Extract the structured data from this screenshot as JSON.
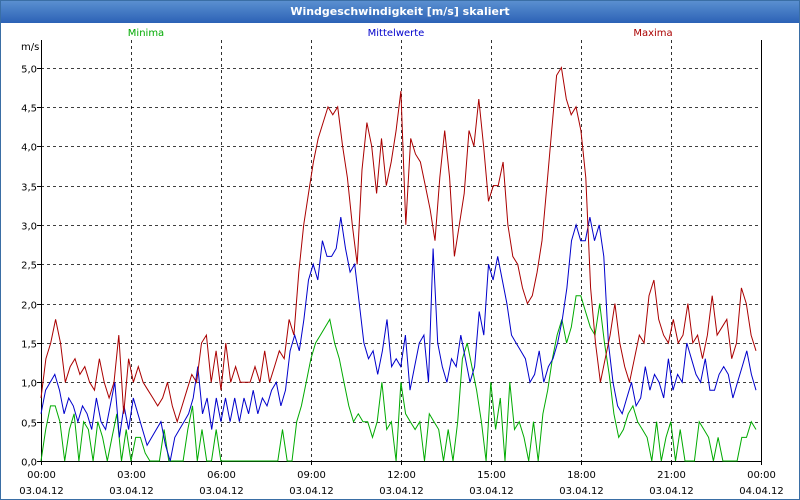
{
  "window": {
    "title": "Windgeschwindigkeit [m/s] skaliert"
  },
  "chart_data": {
    "type": "line",
    "title": "Windgeschwindigkeit [m/s] skaliert",
    "ylabel": "m/s",
    "xlabel": "",
    "ylim": [
      0,
      5.35
    ],
    "xlim": [
      0,
      24
    ],
    "grid": true,
    "legend": "top",
    "yticks": [
      {
        "value": 0,
        "label": "0,0"
      },
      {
        "value": 0.5,
        "label": "0,5"
      },
      {
        "value": 1,
        "label": "1,0"
      },
      {
        "value": 1.5,
        "label": "1,5"
      },
      {
        "value": 2,
        "label": "2,0"
      },
      {
        "value": 2.5,
        "label": "2,5"
      },
      {
        "value": 3,
        "label": "3,0"
      },
      {
        "value": 3.5,
        "label": "3,5"
      },
      {
        "value": 4,
        "label": "4,0"
      },
      {
        "value": 4.5,
        "label": "4,5"
      },
      {
        "value": 5,
        "label": "5,0"
      }
    ],
    "xticks": [
      {
        "value": 0,
        "time": "00:00",
        "date": "03.04.12"
      },
      {
        "value": 3,
        "time": "03:00",
        "date": "03.04.12"
      },
      {
        "value": 6,
        "time": "06:00",
        "date": "03.04.12"
      },
      {
        "value": 9,
        "time": "09:00",
        "date": "03.04.12"
      },
      {
        "value": 12,
        "time": "12:00",
        "date": "03.04.12"
      },
      {
        "value": 15,
        "time": "15:00",
        "date": "03.04.12"
      },
      {
        "value": 18,
        "time": "18:00",
        "date": "03.04.12"
      },
      {
        "value": 21,
        "time": "21:00",
        "date": "03.04.12"
      },
      {
        "value": 24,
        "time": "00:00",
        "date": "04.04.12"
      }
    ],
    "series": [
      {
        "name": "Minima",
        "color": "#00aa00",
        "values": [
          0.0,
          0.4,
          0.7,
          0.7,
          0.5,
          0.0,
          0.4,
          0.6,
          0.0,
          0.5,
          0.4,
          0.0,
          0.5,
          0.3,
          0.0,
          0.3,
          0.6,
          0.0,
          0.4,
          0.0,
          0.3,
          0.3,
          0.1,
          0.0,
          0.0,
          0.0,
          0.4,
          0.0,
          0.0,
          0.0,
          0.0,
          0.4,
          0.7,
          0.0,
          0.4,
          0.0,
          0.0,
          0.4,
          0.0,
          0.0,
          0.0,
          0.0,
          0.0,
          0.0,
          0.0,
          0.0,
          0.0,
          0.0,
          0.0,
          0.0,
          0.0,
          0.4,
          0.0,
          0.0,
          0.5,
          0.7,
          1.0,
          1.3,
          1.5,
          1.6,
          1.7,
          1.8,
          1.5,
          1.3,
          1.0,
          0.7,
          0.5,
          0.6,
          0.5,
          0.5,
          0.3,
          0.5,
          1.0,
          0.4,
          0.5,
          0.0,
          1.0,
          0.6,
          0.5,
          0.4,
          0.5,
          0.0,
          0.6,
          0.5,
          0.4,
          0.0,
          0.4,
          0.0,
          0.5,
          1.3,
          1.5,
          1.2,
          0.9,
          0.5,
          0.0,
          1.0,
          0.4,
          0.8,
          0.0,
          1.0,
          0.4,
          0.5,
          0.3,
          0.0,
          0.5,
          0.0,
          0.6,
          0.9,
          1.3,
          1.6,
          1.8,
          1.5,
          1.7,
          2.1,
          2.1,
          1.9,
          1.7,
          1.6,
          2.0,
          1.5,
          1.1,
          0.6,
          0.3,
          0.4,
          0.6,
          0.7,
          0.5,
          0.4,
          0.3,
          0.0,
          0.5,
          0.0,
          0.3,
          0.5,
          0.0,
          0.4,
          0.0,
          0.0,
          0.0,
          0.5,
          0.4,
          0.3,
          0.0,
          0.3,
          0.0,
          0.0,
          0.0,
          0.0,
          0.3,
          0.3,
          0.5,
          0.4
        ]
      },
      {
        "name": "Mittelwerte",
        "color": "#0000cc",
        "values": [
          0.6,
          0.9,
          1.0,
          1.1,
          0.9,
          0.6,
          0.8,
          0.7,
          0.5,
          0.7,
          0.6,
          0.4,
          0.8,
          0.5,
          0.4,
          0.7,
          1.0,
          0.3,
          0.7,
          0.4,
          0.8,
          0.6,
          0.4,
          0.2,
          0.3,
          0.4,
          0.5,
          0.2,
          0.0,
          0.3,
          0.4,
          0.5,
          0.6,
          0.8,
          1.2,
          0.6,
          0.8,
          0.4,
          0.8,
          0.5,
          0.8,
          0.5,
          0.8,
          0.5,
          0.8,
          0.6,
          0.9,
          0.6,
          0.8,
          0.7,
          0.9,
          1.0,
          0.7,
          0.9,
          1.4,
          1.6,
          1.4,
          1.8,
          2.3,
          2.5,
          2.3,
          2.8,
          2.6,
          2.6,
          2.7,
          3.1,
          2.7,
          2.4,
          2.5,
          2.0,
          1.5,
          1.3,
          1.4,
          1.1,
          1.4,
          1.8,
          1.2,
          1.3,
          1.2,
          1.6,
          0.9,
          1.2,
          1.5,
          1.6,
          1.0,
          2.7,
          1.5,
          1.2,
          1.0,
          1.3,
          1.2,
          1.6,
          1.3,
          1.0,
          1.2,
          1.9,
          1.6,
          2.5,
          2.3,
          2.6,
          2.3,
          2.0,
          1.6,
          1.5,
          1.4,
          1.3,
          1.0,
          1.1,
          1.4,
          1.0,
          1.2,
          1.3,
          1.5,
          1.8,
          2.2,
          2.8,
          3.0,
          2.8,
          2.8,
          3.1,
          2.8,
          3.0,
          2.6,
          1.5,
          1.0,
          0.7,
          0.6,
          0.8,
          1.0,
          0.7,
          0.8,
          1.2,
          0.9,
          1.1,
          1.0,
          0.8,
          1.3,
          0.9,
          1.1,
          1.0,
          1.5,
          1.3,
          1.1,
          1.0,
          1.3,
          0.9,
          0.9,
          1.1,
          1.2,
          1.1,
          0.8,
          1.0,
          1.2,
          1.4,
          1.1,
          0.9
        ]
      },
      {
        "name": "Maxima",
        "color": "#aa0000",
        "values": [
          0.8,
          1.3,
          1.5,
          1.8,
          1.5,
          1.0,
          1.2,
          1.3,
          1.1,
          1.2,
          1.0,
          0.9,
          1.3,
          1.0,
          0.8,
          1.0,
          1.6,
          0.6,
          1.3,
          1.0,
          1.2,
          1.0,
          0.9,
          0.8,
          0.7,
          0.8,
          1.0,
          0.7,
          0.5,
          0.7,
          0.9,
          1.1,
          1.0,
          1.5,
          1.6,
          1.0,
          1.4,
          0.9,
          1.5,
          1.0,
          1.2,
          1.0,
          1.0,
          1.0,
          1.2,
          1.0,
          1.4,
          1.0,
          1.2,
          1.4,
          1.3,
          1.8,
          1.6,
          2.4,
          3.0,
          3.4,
          3.8,
          4.1,
          4.3,
          4.5,
          4.4,
          4.5,
          4.0,
          3.6,
          3.0,
          2.5,
          3.7,
          4.3,
          4.0,
          3.4,
          4.1,
          3.5,
          3.8,
          4.2,
          4.7,
          3.0,
          4.1,
          3.9,
          3.8,
          3.5,
          3.2,
          2.8,
          3.6,
          4.2,
          3.6,
          2.6,
          3.0,
          3.4,
          4.2,
          4.0,
          4.6,
          4.0,
          3.3,
          3.5,
          3.5,
          3.8,
          3.0,
          2.6,
          2.5,
          2.2,
          2.0,
          2.1,
          2.4,
          2.8,
          3.5,
          4.2,
          4.9,
          5.0,
          4.6,
          4.4,
          4.5,
          4.2,
          3.6,
          2.2,
          1.5,
          1.0,
          1.3,
          1.6,
          2.0,
          1.5,
          1.2,
          1.0,
          1.3,
          1.6,
          1.5,
          2.1,
          2.3,
          1.8,
          1.6,
          1.5,
          1.8,
          1.5,
          1.6,
          2.0,
          1.5,
          1.6,
          1.3,
          1.6,
          2.1,
          1.6,
          1.7,
          1.8,
          1.3,
          1.5,
          2.2,
          2.0,
          1.6,
          1.4
        ]
      }
    ]
  }
}
